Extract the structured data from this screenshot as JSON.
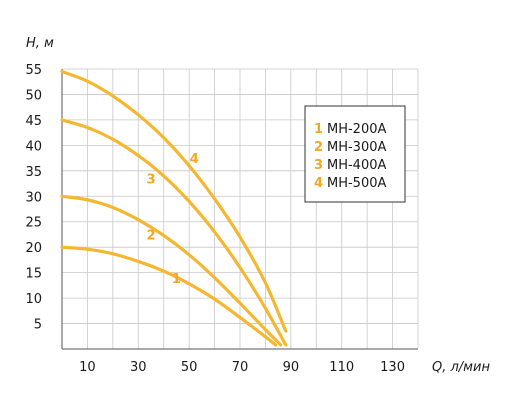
{
  "chart_data": {
    "type": "line",
    "xlabel": "Q, л/мин",
    "ylabel": "H, м",
    "xlim": [
      0,
      140
    ],
    "ylim": [
      0,
      55
    ],
    "x_ticks": [
      10,
      30,
      50,
      70,
      90,
      110,
      130
    ],
    "y_ticks": [
      5,
      10,
      15,
      20,
      25,
      30,
      35,
      40,
      45,
      50,
      55
    ],
    "grid": true,
    "legend_position": "top-right",
    "colors": {
      "curve": "#F5B731",
      "label": "#F5A623",
      "grid": "#c8c8c8",
      "axis": "#555555"
    },
    "series": [
      {
        "name": "МН-200А",
        "number": "1",
        "x": [
          0,
          10,
          20,
          30,
          40,
          50,
          60,
          70,
          80,
          84
        ],
        "y": [
          20,
          19.6,
          18.7,
          17.2,
          15.3,
          12.8,
          9.8,
          6.2,
          2.4,
          0.8
        ]
      },
      {
        "name": "МН-300А",
        "number": "2",
        "x": [
          0,
          10,
          20,
          30,
          40,
          50,
          60,
          70,
          80,
          86
        ],
        "y": [
          30,
          29.3,
          27.8,
          25.4,
          22.3,
          18.5,
          14.0,
          9.0,
          3.8,
          0.8
        ]
      },
      {
        "name": "МН-400А",
        "number": "3",
        "x": [
          0,
          10,
          20,
          30,
          40,
          50,
          60,
          70,
          80,
          88
        ],
        "y": [
          45,
          43.5,
          41.2,
          38.0,
          34.0,
          29.0,
          23.0,
          16.0,
          8.0,
          0.8
        ]
      },
      {
        "name": "МН-500А",
        "number": "4",
        "x": [
          0,
          10,
          20,
          30,
          40,
          50,
          60,
          70,
          80,
          88
        ],
        "y": [
          54.5,
          52.6,
          49.7,
          46.0,
          41.5,
          36.0,
          29.5,
          22.0,
          13.0,
          3.5
        ]
      }
    ],
    "curve_labels": [
      {
        "text": "1",
        "x": 45,
        "y": 13
      },
      {
        "text": "2",
        "x": 35,
        "y": 21.5
      },
      {
        "text": "3",
        "x": 35,
        "y": 32.5
      },
      {
        "text": "4",
        "x": 52,
        "y": 36.5
      }
    ]
  }
}
